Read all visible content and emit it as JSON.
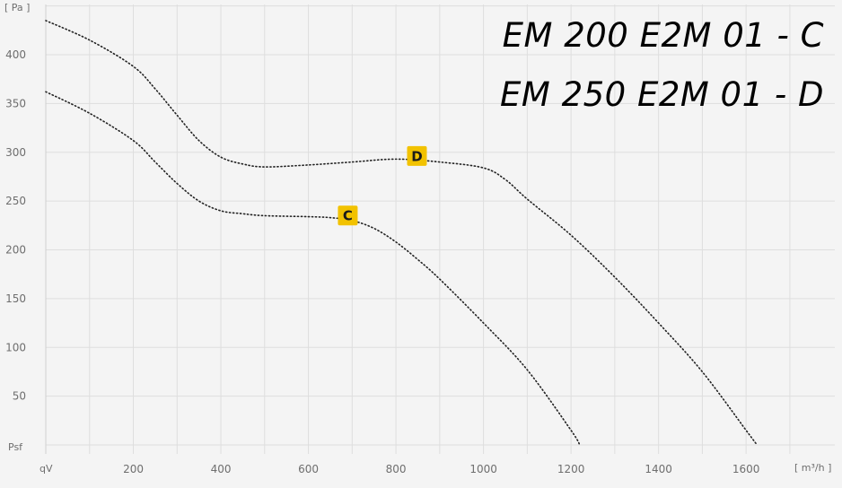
{
  "chart_data": {
    "type": "line",
    "title_lines": [
      "EM 200 E2M 01 - C",
      "EM 250 E2M 01 - D"
    ],
    "xlabel": "[ m³/h ]",
    "ylabel": "[ Pa ]",
    "x_axis_start_label": "qV",
    "y_axis_start_label": "Psf",
    "xlim": [
      0,
      1700
    ],
    "ylim": [
      0,
      450
    ],
    "x_ticks": [
      200,
      400,
      600,
      800,
      1000,
      1200,
      1400,
      1600
    ],
    "y_ticks": [
      50,
      100,
      150,
      200,
      250,
      300,
      350,
      400
    ],
    "grid": true,
    "marker_color": "#f2c200",
    "line_color": "#222222",
    "series": [
      {
        "name": "C",
        "points": [
          [
            0,
            362
          ],
          [
            100,
            340
          ],
          [
            200,
            312
          ],
          [
            250,
            290
          ],
          [
            300,
            268
          ],
          [
            350,
            250
          ],
          [
            400,
            240
          ],
          [
            450,
            237
          ],
          [
            500,
            235
          ],
          [
            600,
            234
          ],
          [
            650,
            233
          ],
          [
            700,
            230
          ],
          [
            750,
            222
          ],
          [
            800,
            208
          ],
          [
            850,
            190
          ],
          [
            900,
            170
          ],
          [
            1000,
            125
          ],
          [
            1100,
            77
          ],
          [
            1200,
            15
          ],
          [
            1220,
            0
          ]
        ],
        "marker_x": 690
      },
      {
        "name": "D",
        "points": [
          [
            0,
            435
          ],
          [
            100,
            415
          ],
          [
            200,
            388
          ],
          [
            250,
            365
          ],
          [
            300,
            338
          ],
          [
            350,
            312
          ],
          [
            400,
            295
          ],
          [
            450,
            288
          ],
          [
            500,
            285
          ],
          [
            600,
            287
          ],
          [
            700,
            290
          ],
          [
            800,
            293
          ],
          [
            900,
            290
          ],
          [
            1000,
            284
          ],
          [
            1050,
            272
          ],
          [
            1100,
            252
          ],
          [
            1200,
            215
          ],
          [
            1300,
            172
          ],
          [
            1400,
            125
          ],
          [
            1500,
            75
          ],
          [
            1600,
            15
          ],
          [
            1625,
            0
          ]
        ],
        "marker_x": 848
      }
    ]
  }
}
